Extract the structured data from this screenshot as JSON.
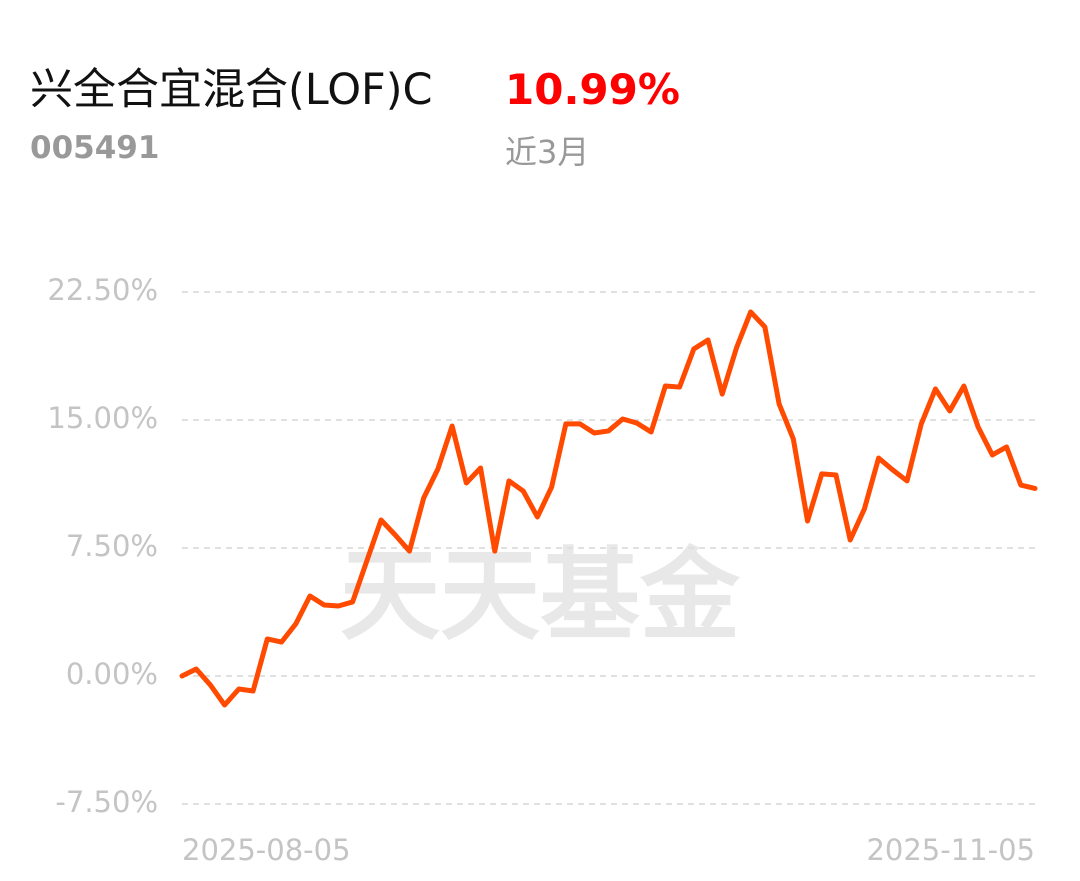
{
  "header": {
    "title": "兴全合宜混合(LOF)C",
    "return": "10.99%",
    "code": "005491",
    "period": "近3月"
  },
  "chart_data": {
    "type": "line",
    "watermark": "天天基金",
    "color": "#ff4a00",
    "grid": true,
    "categories": [
      "2025-08-05",
      null,
      null,
      null,
      null,
      null,
      null,
      null,
      null,
      null,
      null,
      null,
      null,
      null,
      null,
      null,
      null,
      null,
      null,
      null,
      null,
      null,
      null,
      null,
      null,
      null,
      null,
      null,
      null,
      null,
      null,
      null,
      null,
      null,
      null,
      null,
      null,
      null,
      null,
      null,
      null,
      null,
      null,
      null,
      null,
      null,
      null,
      null,
      null,
      null,
      null,
      null,
      null,
      null,
      null,
      null,
      null,
      null,
      null,
      null,
      "2025-11-05"
    ],
    "values": [
      0,
      0.41,
      -0.53,
      -1.7,
      -0.76,
      -0.88,
      2.17,
      1.99,
      3.05,
      4.69,
      4.16,
      4.1,
      4.34,
      6.74,
      9.14,
      8.26,
      7.32,
      10.43,
      12.13,
      14.65,
      11.31,
      12.19,
      7.32,
      11.43,
      10.84,
      9.32,
      11.07,
      14.77,
      14.77,
      14.24,
      14.36,
      15.06,
      14.82,
      14.3,
      16.99,
      16.93,
      19.16,
      19.69,
      16.52,
      19.22,
      21.33,
      20.45,
      15.94,
      13.89,
      9.08,
      11.84,
      11.78,
      7.97,
      9.79,
      12.77,
      12.07,
      11.43,
      14.77,
      16.82,
      15.53,
      16.99,
      14.59,
      12.95,
      13.42,
      11.19,
      10.99
    ],
    "ylim": [
      -7.5,
      22.5
    ],
    "yticks": [
      {
        "value": -7.5,
        "label": "-7.50%"
      },
      {
        "value": 0,
        "label": "0.00%"
      },
      {
        "value": 7.5,
        "label": "7.50%"
      },
      {
        "value": 15,
        "label": "15.00%"
      },
      {
        "value": 22.5,
        "label": "22.50%"
      }
    ]
  }
}
